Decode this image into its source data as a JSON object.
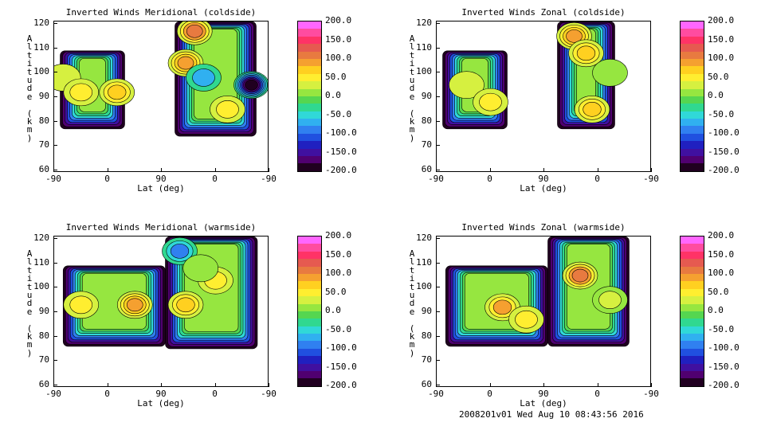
{
  "footer": "2008201v01 Wed Aug 10 08:43:56 2016",
  "colorbar": {
    "labels": [
      "200.0",
      "150.0",
      "100.0",
      "50.0",
      "0.0",
      "-50.0",
      "-100.0",
      "-150.0",
      "-200.0"
    ],
    "colors": [
      "#ff66ff",
      "#ff4ca0",
      "#ff3366",
      "#e65a50",
      "#e87a40",
      "#f5a030",
      "#ffd020",
      "#ffee30",
      "#d6f040",
      "#96e640",
      "#55d650",
      "#30d890",
      "#30d8d8",
      "#30b0f0",
      "#3080f0",
      "#2050e0",
      "#2020c0",
      "#4010a0",
      "#500070",
      "#200020"
    ]
  },
  "chart_data": [
    {
      "type": "heatmap",
      "title": "Inverted Winds Meridional (coldside)",
      "xlabel": "Lat (deg)",
      "ylabel": "Altitude (km)",
      "xticks": [
        "-90",
        "0",
        "90",
        "0",
        "-90"
      ],
      "yticks": [
        "120",
        "110",
        "100",
        "90",
        "80",
        "70",
        "60"
      ],
      "ylim": [
        59,
        121
      ],
      "zlim": [
        -200,
        200
      ],
      "colorbar_ticks": [
        200,
        150,
        100,
        50,
        0,
        -50,
        -100,
        -150,
        -200
      ],
      "features": [
        {
          "x": -75,
          "y": 98,
          "value": 30
        },
        {
          "x": -45,
          "y": 92,
          "value": 45
        },
        {
          "x": 15,
          "y": 92,
          "value": 70
        },
        {
          "x": 130,
          "y": 104,
          "value": 90
        },
        {
          "x": 145,
          "y": 117,
          "value": 110
        },
        {
          "x": 160,
          "y": 98,
          "value": -60
        },
        {
          "x": 200,
          "y": 85,
          "value": 60
        },
        {
          "x": 240,
          "y": 95,
          "value": -190
        }
      ]
    },
    {
      "type": "heatmap",
      "title": "Inverted Winds Zonal (coldside)",
      "xlabel": "Lat (deg)",
      "ylabel": "Altitude (km)",
      "xticks": [
        "-90",
        "0",
        "90",
        "0",
        "-90"
      ],
      "yticks": [
        "120",
        "110",
        "100",
        "90",
        "80",
        "70",
        "60"
      ],
      "ylim": [
        59,
        121
      ],
      "zlim": [
        -200,
        200
      ],
      "colorbar_ticks": [
        200,
        150,
        100,
        50,
        0,
        -50,
        -100,
        -150,
        -200
      ],
      "features": [
        {
          "x": -40,
          "y": 95,
          "value": 30
        },
        {
          "x": 0,
          "y": 88,
          "value": 55
        },
        {
          "x": 140,
          "y": 115,
          "value": 95
        },
        {
          "x": 160,
          "y": 108,
          "value": 80
        },
        {
          "x": 170,
          "y": 85,
          "value": 65
        },
        {
          "x": 200,
          "y": 100,
          "value": 10
        }
      ]
    },
    {
      "type": "heatmap",
      "title": "Inverted Winds Meridional (warmside)",
      "xlabel": "Lat (deg)",
      "ylabel": "Altitude (km)",
      "xticks": [
        "-90",
        "0",
        "90",
        "0",
        "-90"
      ],
      "yticks": [
        "120",
        "110",
        "100",
        "90",
        "80",
        "70",
        "60"
      ],
      "ylim": [
        59,
        121
      ],
      "zlim": [
        -200,
        200
      ],
      "colorbar_ticks": [
        200,
        150,
        100,
        50,
        0,
        -50,
        -100,
        -150,
        -200
      ],
      "features": [
        {
          "x": -45,
          "y": 93,
          "value": 60
        },
        {
          "x": 45,
          "y": 93,
          "value": 95
        },
        {
          "x": 130,
          "y": 93,
          "value": 75
        },
        {
          "x": 180,
          "y": 103,
          "value": 60
        },
        {
          "x": 120,
          "y": 115,
          "value": -80
        },
        {
          "x": 155,
          "y": 108,
          "value": 10
        }
      ]
    },
    {
      "type": "heatmap",
      "title": "Inverted Winds Zonal (warmside)",
      "xlabel": "Lat (deg)",
      "ylabel": "Altitude (km)",
      "xticks": [
        "-90",
        "0",
        "90",
        "0",
        "-90"
      ],
      "yticks": [
        "120",
        "110",
        "100",
        "90",
        "80",
        "70",
        "60"
      ],
      "ylim": [
        59,
        121
      ],
      "zlim": [
        -200,
        200
      ],
      "colorbar_ticks": [
        200,
        150,
        100,
        50,
        0,
        -50,
        -100,
        -150,
        -200
      ],
      "features": [
        {
          "x": 20,
          "y": 92,
          "value": 85
        },
        {
          "x": 60,
          "y": 87,
          "value": 55
        },
        {
          "x": 150,
          "y": 105,
          "value": 110
        },
        {
          "x": 200,
          "y": 95,
          "value": 40
        }
      ]
    }
  ]
}
